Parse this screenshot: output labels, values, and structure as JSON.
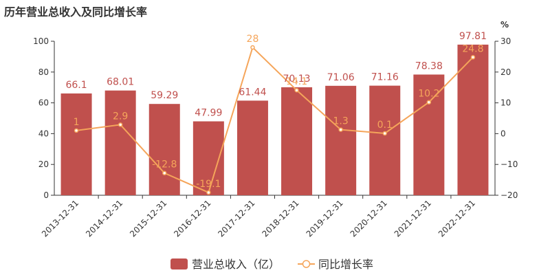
{
  "chart_data": {
    "type": "bar",
    "title": "历年营业总收入及同比增长率",
    "categories": [
      "2013-12-31",
      "2014-12-31",
      "2015-12-31",
      "2016-12-31",
      "2017-12-31",
      "2018-12-31",
      "2019-12-31",
      "2020-12-31",
      "2021-12-31",
      "2022-12-31"
    ],
    "series": [
      {
        "name": "营业总收入（亿）",
        "type": "bar",
        "axis": "left",
        "values": [
          66.1,
          68.01,
          59.29,
          47.99,
          61.44,
          70.13,
          71.06,
          71.16,
          78.38,
          97.81
        ],
        "labels": [
          "66.1",
          "68.01",
          "59.29",
          "47.99",
          "61.44",
          "70.13",
          "71.06",
          "71.16",
          "78.38",
          "97.81"
        ]
      },
      {
        "name": "同比增长率",
        "type": "line",
        "axis": "right",
        "values": [
          1,
          2.9,
          -12.8,
          -19.1,
          28,
          14.1,
          1.3,
          0.1,
          10.2,
          24.8
        ],
        "labels": [
          "1",
          "2.9",
          "-12.8",
          "-19.1",
          "28",
          "14.1",
          "1.3",
          "0.1",
          "10.2",
          "24.8"
        ]
      }
    ],
    "y_left": {
      "min": 0,
      "max": 100,
      "ticks": [
        "0",
        "20",
        "40",
        "60",
        "80",
        "100"
      ]
    },
    "y_right": {
      "min": -20,
      "max": 30,
      "unit": "%",
      "ticks": [
        "−20",
        "−10",
        "0",
        "10",
        "20",
        "30"
      ]
    },
    "grid": false,
    "legend": "bottom-center",
    "colors": {
      "bar": "#c0504d",
      "line": "#f5a55a",
      "axis": "#333333"
    }
  }
}
